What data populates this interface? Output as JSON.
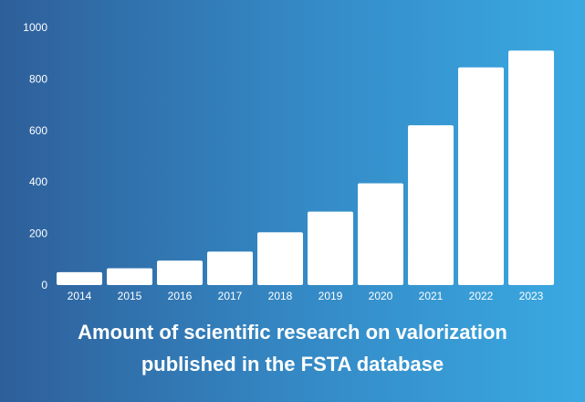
{
  "colors": {
    "bar": "#ffffff",
    "text": "#ffffff",
    "background_left": "#2e5f9a",
    "background_right": "#3aa9e2"
  },
  "chart_data": {
    "type": "bar",
    "title_lines": [
      "Amount of scientific research on valorization",
      "published in the FSTA database"
    ],
    "categories": [
      "2014",
      "2015",
      "2016",
      "2017",
      "2018",
      "2019",
      "2020",
      "2021",
      "2022",
      "2023"
    ],
    "values": [
      50,
      65,
      95,
      130,
      205,
      285,
      395,
      620,
      845,
      910
    ],
    "y_ticks": [
      "0",
      "200",
      "400",
      "600",
      "800",
      "1000"
    ],
    "ylim": [
      0,
      1000
    ],
    "xlabel": "",
    "ylabel": "",
    "grid": false,
    "legend": "none"
  }
}
